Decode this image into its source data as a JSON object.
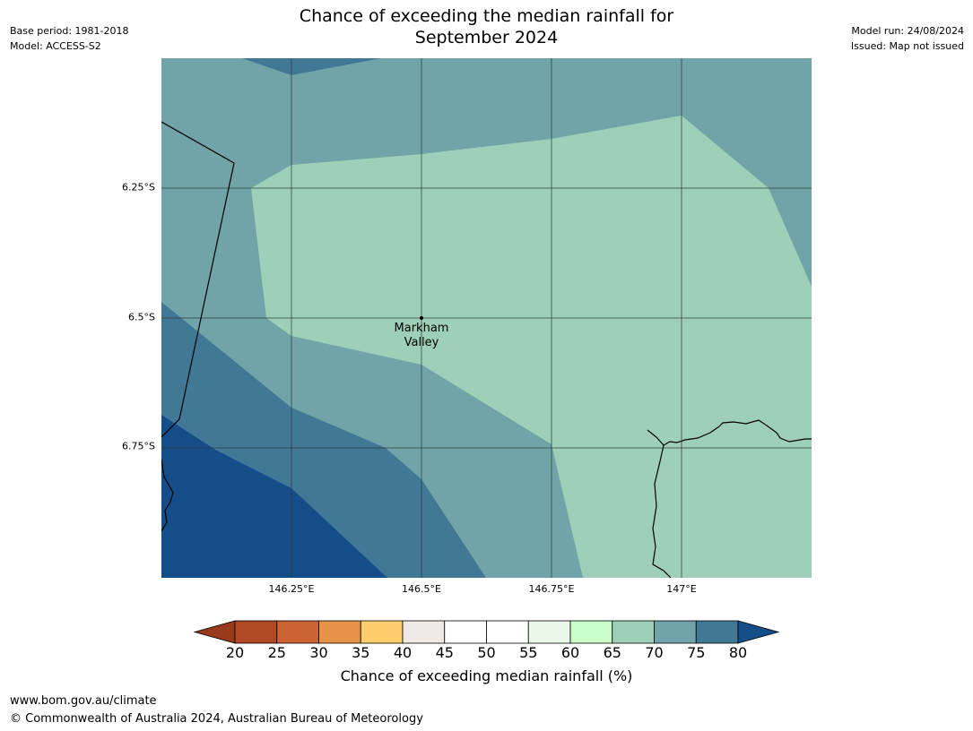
{
  "title": {
    "line1": "Chance of exceeding the median rainfall for",
    "line2": "September 2024"
  },
  "meta_left": {
    "base_period": "Base period: 1981-2018",
    "model": "Model: ACCESS-S2"
  },
  "meta_right": {
    "model_run": "Model run: 24/08/2024",
    "issued": "Issued: Map not issued"
  },
  "map": {
    "lat_labels": [
      "6.25°S",
      "6.5°S",
      "6.75°S"
    ],
    "lon_labels": [
      "146.25°E",
      "146.5°E",
      "146.75°E",
      "147°E"
    ],
    "place": {
      "line1": "Markham",
      "line2": "Valley"
    },
    "class_colors": {
      "65-70": "#9ed0b9",
      "70-75": "#70a4a8",
      "75-80": "#417896",
      "80+": "#154d88"
    }
  },
  "colorbar": {
    "ticks": [
      "20",
      "25",
      "30",
      "35",
      "40",
      "45",
      "50",
      "55",
      "60",
      "65",
      "70",
      "75",
      "80"
    ],
    "under_color": "#993a1d",
    "over_color": "#154d88",
    "colors": [
      "#b04a25",
      "#cd6234",
      "#e49348",
      "#fdcd6b",
      "#efe9e5",
      "#ffffff",
      "#ffffff",
      "#eaf8ea",
      "#c9fdc9",
      "#9ed0b9",
      "#70a4a8",
      "#417896"
    ],
    "label": "Chance of exceeding median rainfall (%)"
  },
  "footer": {
    "url": "www.bom.gov.au/climate",
    "copyright": "© Commonwealth of Australia 2024, Australian Bureau of Meteorology"
  }
}
